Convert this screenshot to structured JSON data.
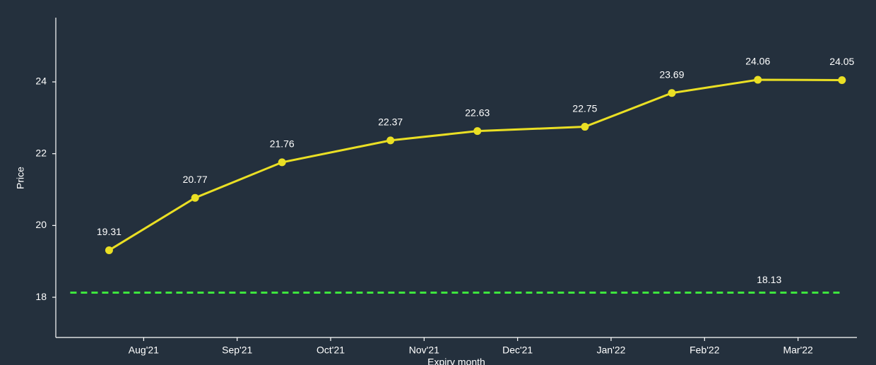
{
  "chart_data": {
    "type": "line",
    "x_label": "Expiry month",
    "y_label": "Price",
    "x": [
      7.63,
      8.55,
      9.48,
      10.64,
      11.57,
      12.72,
      13.65,
      14.57,
      15.47
    ],
    "series": [
      {
        "color": "#eadf24",
        "values": [
          19.31,
          20.77,
          21.76,
          22.37,
          22.63,
          22.75,
          23.69,
          24.06,
          24.05
        ]
      }
    ],
    "xlim": [
      7.06,
      15.63
    ],
    "xticks": [
      {
        "value": 8,
        "label": "Aug'21"
      },
      {
        "value": 9,
        "label": "Sep'21"
      },
      {
        "value": 10,
        "label": "Oct'21"
      },
      {
        "value": 11,
        "label": "Nov'21"
      },
      {
        "value": 12,
        "label": "Dec'21"
      },
      {
        "value": 13,
        "label": "Jan'22"
      },
      {
        "value": 14,
        "label": "Feb'22"
      },
      {
        "value": 15,
        "label": "Mar'22"
      }
    ],
    "ylim": [
      16.88,
      25.79
    ],
    "yticks": [
      18,
      20,
      22,
      24
    ],
    "reference_line": {
      "value": 18.13,
      "color": "#3ee63e"
    },
    "grid": false
  }
}
